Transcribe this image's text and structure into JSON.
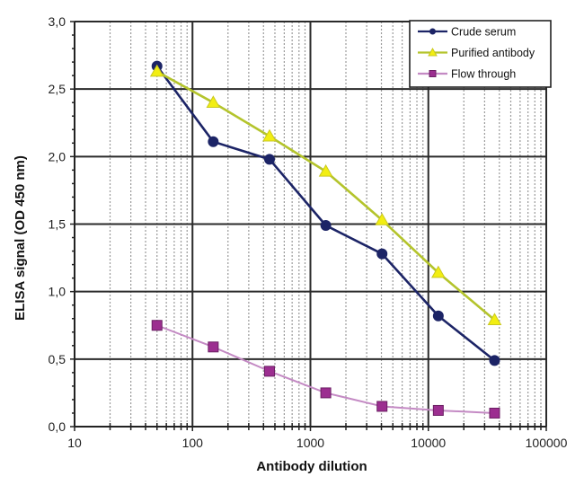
{
  "chart_data": {
    "type": "line",
    "title": "",
    "xlabel": "Antibody dilution",
    "ylabel": "ELISA signal (OD 450 nm)",
    "xscale": "log",
    "xlim": [
      10,
      100000
    ],
    "ylim": [
      0,
      3.0
    ],
    "xticks": [
      10,
      100,
      1000,
      10000,
      100000
    ],
    "xtick_labels": [
      "10",
      "100",
      "1000",
      "10000",
      "100000"
    ],
    "yticks": [
      0,
      0.5,
      1.0,
      1.5,
      2.0,
      2.5,
      3.0
    ],
    "ytick_labels": [
      "0,0",
      "0,5",
      "1,0",
      "1,5",
      "2,0",
      "2,5",
      "3,0"
    ],
    "y_minor_step": 0.1,
    "grid": true,
    "legend_position": "top-right",
    "x": [
      50,
      150,
      450,
      1350,
      4050,
      12150,
      36450
    ],
    "series": [
      {
        "name": "Crude serum",
        "marker": "circle",
        "line_color": "#1c2466",
        "marker_color": "#1c2466",
        "values": [
          2.67,
          2.11,
          1.98,
          1.49,
          1.28,
          0.82,
          0.49
        ]
      },
      {
        "name": "Purified antibody",
        "marker": "triangle",
        "line_color": "#b4c42c",
        "marker_color": "#f2ee12",
        "values": [
          2.63,
          2.4,
          2.15,
          1.89,
          1.53,
          1.14,
          0.79
        ]
      },
      {
        "name": "Flow through",
        "marker": "square",
        "line_color": "#c48ac4",
        "marker_color": "#9c2e90",
        "values": [
          0.75,
          0.59,
          0.41,
          0.25,
          0.15,
          0.12,
          0.1
        ]
      }
    ]
  }
}
